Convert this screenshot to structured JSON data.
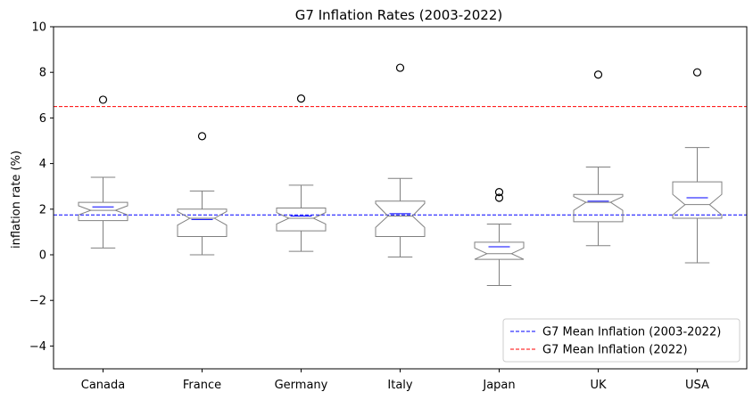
{
  "chart_data": {
    "type": "box",
    "title": "G7 Inflation Rates (2003-2022)",
    "xlabel": "",
    "ylabel": "inflation rate (%)",
    "ylim": [
      -5,
      10
    ],
    "yticks": [
      -4,
      -2,
      0,
      2,
      4,
      6,
      8,
      10
    ],
    "ytick_labels": [
      "−4",
      "−2",
      "0",
      "2",
      "4",
      "6",
      "8",
      "10"
    ],
    "grid": false,
    "categories": [
      "Canada",
      "France",
      "Germany",
      "Italy",
      "Japan",
      "UK",
      "USA"
    ],
    "boxes": [
      {
        "name": "Canada",
        "whisker_low": 0.3,
        "q1": 1.5,
        "median": 1.95,
        "q3": 2.3,
        "whisker_high": 3.4,
        "mean": 2.1,
        "notch_low": 1.75,
        "notch_high": 2.15,
        "outliers": [
          6.8
        ]
      },
      {
        "name": "France",
        "whisker_low": 0.0,
        "q1": 0.8,
        "median": 1.6,
        "q3": 2.0,
        "whisker_high": 2.8,
        "mean": 1.55,
        "notch_low": 1.3,
        "notch_high": 1.9,
        "outliers": [
          5.2
        ]
      },
      {
        "name": "Germany",
        "whisker_low": 0.15,
        "q1": 1.05,
        "median": 1.6,
        "q3": 2.05,
        "whisker_high": 3.05,
        "mean": 1.7,
        "notch_low": 1.35,
        "notch_high": 1.85,
        "outliers": [
          6.85
        ]
      },
      {
        "name": "Italy",
        "whisker_low": -0.1,
        "q1": 0.8,
        "median": 1.7,
        "q3": 2.35,
        "whisker_high": 3.35,
        "mean": 1.8,
        "notch_low": 1.2,
        "notch_high": 2.25,
        "outliers": [
          8.2
        ]
      },
      {
        "name": "Japan",
        "whisker_low": -1.35,
        "q1": -0.2,
        "median": 0.05,
        "q3": 0.55,
        "whisker_high": 1.35,
        "mean": 0.35,
        "notch_low": -0.2,
        "notch_high": 0.3,
        "outliers": [
          2.5,
          2.75
        ]
      },
      {
        "name": "UK",
        "whisker_low": 0.4,
        "q1": 1.45,
        "median": 2.3,
        "q3": 2.65,
        "whisker_high": 3.85,
        "mean": 2.35,
        "notch_low": 1.95,
        "notch_high": 2.55,
        "outliers": [
          7.9
        ]
      },
      {
        "name": "USA",
        "whisker_low": -0.35,
        "q1": 1.6,
        "median": 2.2,
        "q3": 3.2,
        "whisker_high": 4.7,
        "mean": 2.5,
        "notch_low": 1.75,
        "notch_high": 2.65,
        "outliers": [
          8.0
        ]
      }
    ],
    "reference_lines": [
      {
        "name": "G7 Mean Inflation (2003-2022)",
        "value": 1.75,
        "color": "#0000ff",
        "style": "dashed"
      },
      {
        "name": "G7 Mean Inflation (2022)",
        "value": 6.5,
        "color": "#ff0000",
        "style": "dashed"
      }
    ],
    "legend_placement": "lower-right",
    "colors": {
      "box": "#808080",
      "mean": "#0000ff",
      "outlier": "#000000"
    }
  }
}
